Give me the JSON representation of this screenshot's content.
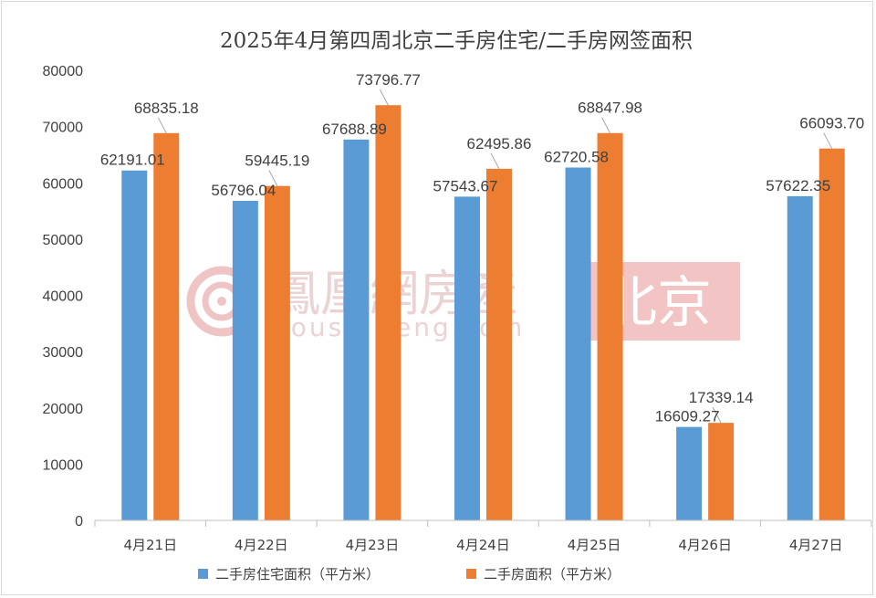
{
  "chart_data": {
    "type": "bar",
    "title": "2025年4月第四周北京二手房住宅/二手房网签面积",
    "categories": [
      "4月21日",
      "4月22日",
      "4月23日",
      "4月24日",
      "4月25日",
      "4月26日",
      "4月27日"
    ],
    "series": [
      {
        "name": "二手房住宅面积（平方米）",
        "color": "#5b9bd5",
        "values": [
          62191.01,
          56796.04,
          67688.89,
          57543.67,
          62720.58,
          16609.27,
          57622.35
        ],
        "labels": [
          "62191.01",
          "56796.04",
          "67688.89",
          "57543.67",
          "62720.58",
          "16609.27",
          "57622.35"
        ]
      },
      {
        "name": "二手房面积（平方米）",
        "color": "#ed7d31",
        "values": [
          68835.18,
          59445.19,
          73796.77,
          62495.86,
          68847.98,
          17339.14,
          66093.7
        ],
        "labels": [
          "68835.18",
          "59445.19",
          "73796.77",
          "62495.86",
          "68847.98",
          "17339.14",
          "66093.70"
        ]
      }
    ],
    "ylim": [
      0,
      80000
    ],
    "yticks": [
      "0",
      "10000",
      "20000",
      "30000",
      "40000",
      "50000",
      "60000",
      "70000",
      "80000"
    ],
    "xlabel": "",
    "ylabel": "",
    "grid": false,
    "legend_position": "bottom"
  },
  "watermark": {
    "brand": "鳳凰網房產",
    "url": "house.ifeng.com",
    "city": "北京",
    "logo_color": "#e8a9a9",
    "city_bg": "#f3c4c4"
  }
}
